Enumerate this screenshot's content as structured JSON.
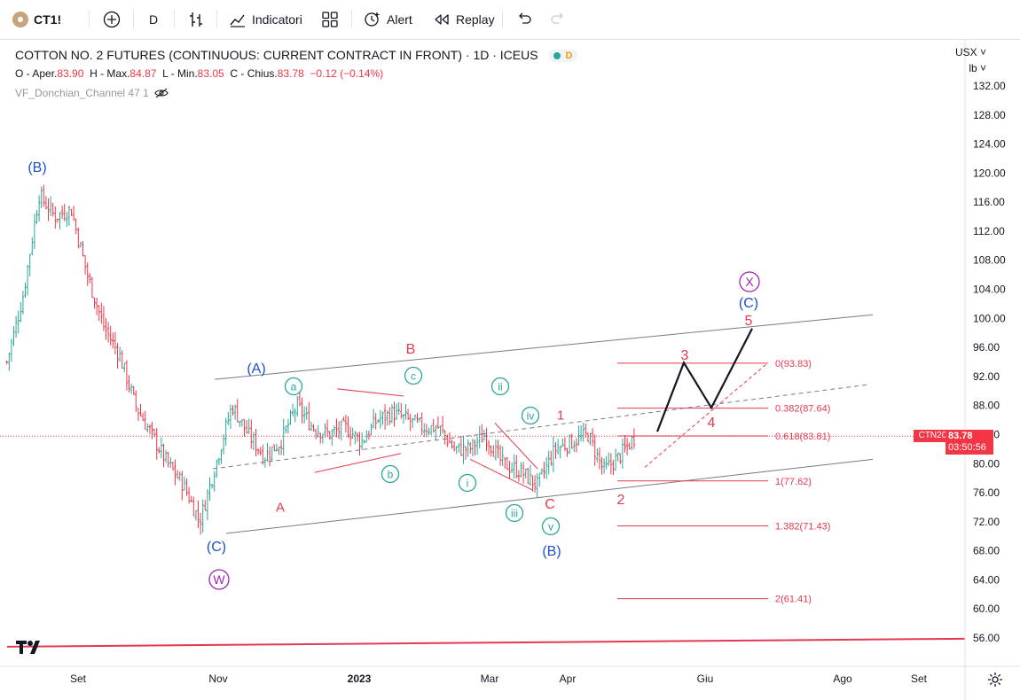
{
  "toolbar": {
    "symbol": "CT1!",
    "interval": "D",
    "indicators_label": "Indicatori",
    "alert_label": "Alert",
    "replay_label": "Replay",
    "icons": [
      "symbol-logo-icon",
      "add-symbol-icon",
      "bar-style-icon",
      "indicators-icon",
      "templates-icon",
      "alert-icon",
      "replay-icon",
      "undo-icon",
      "redo-icon"
    ]
  },
  "legend": {
    "title": "COTTON NO. 2 FUTURES (CONTINUOUS: CURRENT CONTRACT IN FRONT) · 1D · ICEUS",
    "delay_badge": "D",
    "open_label": "O - Aper.",
    "open": "83.90",
    "high_label": "H - Max.",
    "high": "84.87",
    "low_label": "L - Min.",
    "low": "83.05",
    "close_label": "C - Chius.",
    "close": "83.78",
    "change": "−0.12 (−0.14%)",
    "indicator": "VF_Donchian_Channel 47 1"
  },
  "price_scale": {
    "currency": "USX",
    "unit": "lb",
    "current_price": "83.78",
    "countdown": "03:50:56",
    "symbol_tag": "CTN2023"
  },
  "colors": {
    "up": "#26a69a",
    "down": "#f23645",
    "wave_blue": "#1e50c8",
    "wave_purple": "#9c27b0",
    "wave_teal": "#26a69a",
    "wave_red": "#e53950",
    "channel": "#787b86"
  },
  "chart_data": {
    "type": "line",
    "title": "COTTON NO. 2 FUTURES (CONTINUOUS: CURRENT CONTRACT IN FRONT) · 1D · ICEUS",
    "ylim": [
      55,
      134
    ],
    "yticks": [
      56,
      60,
      64,
      68,
      72,
      76,
      80,
      84,
      88,
      92,
      96,
      100,
      104,
      108,
      112,
      116,
      120,
      124,
      128,
      132
    ],
    "xtick_labels": [
      "Set",
      "Nov",
      "2023",
      "Mar",
      "Apr",
      "Giu",
      "Ago",
      "Set"
    ],
    "series": [
      {
        "x": [
          "2022-08-01",
          "2022-08-08",
          "2022-08-15",
          "2022-08-22",
          "2022-08-29",
          "2022-09-05",
          "2022-09-12",
          "2022-09-19",
          "2022-09-26",
          "2022-10-03",
          "2022-10-10",
          "2022-10-17",
          "2022-10-24",
          "2022-10-31",
          "2022-11-07",
          "2022-11-14",
          "2022-11-21",
          "2022-11-28",
          "2022-12-05",
          "2022-12-12",
          "2022-12-19",
          "2022-12-26",
          "2023-01-02",
          "2023-01-09",
          "2023-01-16",
          "2023-01-23",
          "2023-01-30",
          "2023-02-06",
          "2023-02-13",
          "2023-02-20",
          "2023-02-27",
          "2023-03-06",
          "2023-03-13",
          "2023-03-20",
          "2023-03-27",
          "2023-04-03",
          "2023-04-10",
          "2023-04-17",
          "2023-04-24",
          "2023-05-01"
        ],
        "values": [
          94,
          103,
          117,
          114,
          115,
          106,
          99,
          95,
          88,
          84,
          80,
          77,
          72,
          80,
          88,
          84,
          81,
          83,
          88,
          85,
          84,
          85,
          83,
          86,
          87,
          86,
          85,
          85,
          82,
          82,
          84,
          80,
          79,
          77,
          82,
          83,
          84,
          79,
          81,
          83.78
        ]
      }
    ],
    "annotations": {
      "fib_levels": [
        "0(93.83)",
        "0.382(87.64)",
        "0.618(83.81)",
        "1(77.62)",
        "1.382(71.43)",
        "2(61.41)"
      ],
      "wave_labels": [
        "(B)",
        "(A)",
        "(C)",
        "W",
        "A",
        "B",
        "C",
        "(B)",
        "a",
        "b",
        "c",
        "i",
        "ii",
        "iii",
        "iv",
        "v",
        "1",
        "2",
        "3",
        "4",
        "5",
        "X",
        "(C)"
      ]
    }
  }
}
